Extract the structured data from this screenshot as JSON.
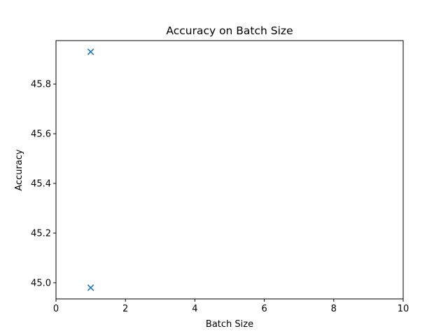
{
  "chart_data": {
    "type": "scatter",
    "title": "Accuracy on Batch Size",
    "xlabel": "Batch Size",
    "ylabel": "Accuracy",
    "xlim": [
      0,
      10
    ],
    "ylim": [
      44.935,
      45.975
    ],
    "xticks": [
      0,
      2,
      4,
      6,
      8,
      10
    ],
    "yticks": [
      45.0,
      45.2,
      45.4,
      45.6,
      45.8
    ],
    "xtick_labels": [
      "0",
      "2",
      "4",
      "6",
      "8",
      "10"
    ],
    "ytick_labels": [
      "45.0",
      "45.2",
      "45.4",
      "45.6",
      "45.8"
    ],
    "grid": false,
    "marker": "x",
    "color": "#1f77b4",
    "series": [
      {
        "x": [
          1,
          1
        ],
        "y": [
          45.93,
          44.98
        ]
      }
    ]
  }
}
